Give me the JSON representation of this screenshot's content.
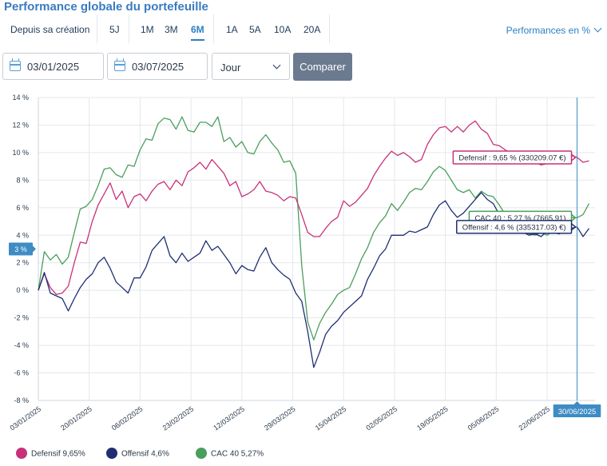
{
  "title": "Performance globale du portefeuille",
  "period": {
    "label": "Depuis sa création",
    "options": [
      "5J",
      "1M",
      "3M",
      "6M",
      "1A",
      "5A",
      "10A",
      "20A"
    ],
    "active": "6M"
  },
  "mode_select": "Performances en %",
  "filters": {
    "start_date": "03/01/2025",
    "end_date": "03/07/2025",
    "granularity": "Jour",
    "compare_label": "Comparer"
  },
  "colors": {
    "defensif": "#c8317a",
    "offensif": "#1f2e73",
    "cac40": "#4a9e5c",
    "accent": "#2d7fc4",
    "cursor": "#3d8cc4"
  },
  "chart_data": {
    "type": "line",
    "ylim": [
      -8,
      14
    ],
    "yticks": [
      -8,
      -6,
      -4,
      -2,
      0,
      2,
      4,
      6,
      8,
      10,
      12,
      14
    ],
    "ytick_labels": [
      "-8 %",
      "-6 %",
      "-4 %",
      "-2 %",
      "0 %",
      "2 %",
      "4 %",
      "6 %",
      "8 %",
      "10 %",
      "12 %",
      "14 %"
    ],
    "xlim": [
      0,
      186
    ],
    "xtick_labels": [
      "03/01/2025",
      "20/01/2025",
      "06/02/2025",
      "23/02/2025",
      "12/03/2025",
      "29/03/2025",
      "15/04/2025",
      "02/05/2025",
      "19/05/2025",
      "05/06/2025",
      "22/06/2025"
    ],
    "xtick_positions": [
      0,
      17,
      34,
      51,
      68,
      85,
      102,
      119,
      136,
      153,
      170
    ],
    "grid": true,
    "series": [
      {
        "name": "Defensif",
        "key": "defensif",
        "points": [
          [
            0,
            0
          ],
          [
            2,
            1.2
          ],
          [
            4,
            0.2
          ],
          [
            6,
            -0.3
          ],
          [
            8,
            -0.2
          ],
          [
            10,
            0.3
          ],
          [
            12,
            2
          ],
          [
            14,
            3.5
          ],
          [
            16,
            3.4
          ],
          [
            18,
            5
          ],
          [
            20,
            6.2
          ],
          [
            22,
            7
          ],
          [
            24,
            7.8
          ],
          [
            26,
            6.6
          ],
          [
            28,
            7.2
          ],
          [
            30,
            6
          ],
          [
            32,
            6.8
          ],
          [
            34,
            7
          ],
          [
            36,
            6.5
          ],
          [
            38,
            7.2
          ],
          [
            40,
            7.7
          ],
          [
            42,
            7.9
          ],
          [
            44,
            7.3
          ],
          [
            46,
            8
          ],
          [
            48,
            7.6
          ],
          [
            50,
            8.6
          ],
          [
            52,
            8.9
          ],
          [
            54,
            9.3
          ],
          [
            56,
            8.8
          ],
          [
            58,
            9.5
          ],
          [
            60,
            9
          ],
          [
            62,
            8.5
          ],
          [
            64,
            7.6
          ],
          [
            66,
            7.9
          ],
          [
            68,
            6.8
          ],
          [
            70,
            7
          ],
          [
            72,
            7.3
          ],
          [
            74,
            7.9
          ],
          [
            76,
            7.2
          ],
          [
            78,
            7.1
          ],
          [
            80,
            6.9
          ],
          [
            82,
            6.5
          ],
          [
            84,
            6.8
          ],
          [
            86,
            6.7
          ],
          [
            88,
            5.5
          ],
          [
            90,
            4.2
          ],
          [
            92,
            3.9
          ],
          [
            94,
            3.9
          ],
          [
            96,
            4.5
          ],
          [
            98,
            5
          ],
          [
            100,
            5.3
          ],
          [
            102,
            6.5
          ],
          [
            104,
            6.1
          ],
          [
            106,
            6.4
          ],
          [
            108,
            6.9
          ],
          [
            110,
            7.4
          ],
          [
            112,
            8.3
          ],
          [
            114,
            9
          ],
          [
            116,
            9.6
          ],
          [
            118,
            10.1
          ],
          [
            120,
            9.8
          ],
          [
            122,
            10
          ],
          [
            124,
            9.7
          ],
          [
            126,
            9.3
          ],
          [
            128,
            9.5
          ],
          [
            130,
            10.6
          ],
          [
            132,
            11.3
          ],
          [
            134,
            11.8
          ],
          [
            136,
            11.9
          ],
          [
            138,
            11.5
          ],
          [
            140,
            11.9
          ],
          [
            142,
            11.5
          ],
          [
            144,
            12
          ],
          [
            146,
            12.3
          ],
          [
            148,
            11.7
          ],
          [
            150,
            11.4
          ],
          [
            152,
            10.6
          ],
          [
            154,
            10.5
          ],
          [
            156,
            10.2
          ],
          [
            158,
            9.9
          ],
          [
            160,
            9.8
          ],
          [
            162,
            9.5
          ],
          [
            164,
            9.3
          ],
          [
            166,
            9.3
          ],
          [
            168,
            9.1
          ],
          [
            170,
            9.2
          ],
          [
            172,
            9.2
          ],
          [
            174,
            9.4
          ],
          [
            176,
            9.6
          ],
          [
            178,
            9.8
          ],
          [
            180,
            9.65
          ],
          [
            182,
            9.3
          ],
          [
            184,
            9.4
          ]
        ]
      },
      {
        "name": "Offensif",
        "key": "offensif",
        "points": [
          [
            0,
            0
          ],
          [
            2,
            1.3
          ],
          [
            4,
            -0.2
          ],
          [
            6,
            -0.4
          ],
          [
            8,
            -0.6
          ],
          [
            10,
            -1.5
          ],
          [
            12,
            -0.6
          ],
          [
            14,
            0.2
          ],
          [
            16,
            0.8
          ],
          [
            18,
            1.2
          ],
          [
            20,
            2
          ],
          [
            22,
            2.4
          ],
          [
            24,
            1.6
          ],
          [
            26,
            0.6
          ],
          [
            28,
            0.2
          ],
          [
            30,
            -0.2
          ],
          [
            32,
            0.9
          ],
          [
            34,
            0.9
          ],
          [
            36,
            1.7
          ],
          [
            38,
            2.9
          ],
          [
            40,
            3.4
          ],
          [
            42,
            3.9
          ],
          [
            44,
            2.5
          ],
          [
            46,
            2
          ],
          [
            48,
            2.7
          ],
          [
            50,
            2.1
          ],
          [
            52,
            2.4
          ],
          [
            54,
            2.7
          ],
          [
            56,
            3.6
          ],
          [
            58,
            2.9
          ],
          [
            60,
            3.2
          ],
          [
            62,
            2.6
          ],
          [
            64,
            2
          ],
          [
            66,
            1.2
          ],
          [
            68,
            1.8
          ],
          [
            70,
            1.5
          ],
          [
            72,
            1.4
          ],
          [
            74,
            2.4
          ],
          [
            76,
            3.1
          ],
          [
            78,
            2
          ],
          [
            80,
            1.5
          ],
          [
            82,
            1.1
          ],
          [
            84,
            0.8
          ],
          [
            86,
            -0.2
          ],
          [
            88,
            -0.8
          ],
          [
            90,
            -3
          ],
          [
            92,
            -5.6
          ],
          [
            94,
            -4.5
          ],
          [
            96,
            -3.2
          ],
          [
            98,
            -2.6
          ],
          [
            100,
            -2.2
          ],
          [
            102,
            -1.6
          ],
          [
            104,
            -1.2
          ],
          [
            106,
            -0.8
          ],
          [
            108,
            -0.4
          ],
          [
            110,
            0.8
          ],
          [
            112,
            1.6
          ],
          [
            114,
            2.5
          ],
          [
            116,
            3
          ],
          [
            118,
            4
          ],
          [
            120,
            4
          ],
          [
            122,
            4
          ],
          [
            124,
            4.3
          ],
          [
            126,
            4.2
          ],
          [
            128,
            4.4
          ],
          [
            130,
            4.6
          ],
          [
            132,
            5.5
          ],
          [
            134,
            6.2
          ],
          [
            136,
            6.5
          ],
          [
            138,
            5.8
          ],
          [
            140,
            5.3
          ],
          [
            142,
            5.6
          ],
          [
            144,
            6.1
          ],
          [
            146,
            6.6
          ],
          [
            148,
            7.1
          ],
          [
            150,
            6.6
          ],
          [
            152,
            6.3
          ],
          [
            154,
            5.5
          ],
          [
            156,
            5
          ],
          [
            158,
            4.6
          ],
          [
            160,
            4.4
          ],
          [
            162,
            4.2
          ],
          [
            164,
            4
          ],
          [
            166,
            4.1
          ],
          [
            168,
            3.9
          ],
          [
            170,
            4.3
          ],
          [
            172,
            4.2
          ],
          [
            174,
            4.1
          ],
          [
            176,
            4.3
          ],
          [
            178,
            4.5
          ],
          [
            180,
            4.6
          ],
          [
            182,
            3.9
          ],
          [
            184,
            4.5
          ]
        ]
      },
      {
        "name": "CAC 40",
        "key": "cac40",
        "points": [
          [
            0,
            0
          ],
          [
            2,
            2.8
          ],
          [
            4,
            2.2
          ],
          [
            6,
            2.6
          ],
          [
            8,
            1.9
          ],
          [
            10,
            2.4
          ],
          [
            12,
            4.2
          ],
          [
            14,
            5.9
          ],
          [
            16,
            6.1
          ],
          [
            18,
            6.6
          ],
          [
            20,
            7.6
          ],
          [
            22,
            8.8
          ],
          [
            24,
            8.9
          ],
          [
            26,
            8.4
          ],
          [
            28,
            8.2
          ],
          [
            30,
            9.1
          ],
          [
            32,
            9
          ],
          [
            34,
            10.2
          ],
          [
            36,
            11
          ],
          [
            38,
            10.9
          ],
          [
            40,
            12.1
          ],
          [
            42,
            12.5
          ],
          [
            44,
            12.4
          ],
          [
            46,
            11.7
          ],
          [
            48,
            12.6
          ],
          [
            50,
            11.6
          ],
          [
            52,
            11.5
          ],
          [
            54,
            12.2
          ],
          [
            56,
            12.2
          ],
          [
            58,
            11.9
          ],
          [
            60,
            12.6
          ],
          [
            62,
            10.8
          ],
          [
            64,
            11.1
          ],
          [
            66,
            10.4
          ],
          [
            68,
            10.8
          ],
          [
            70,
            10
          ],
          [
            72,
            9.9
          ],
          [
            74,
            10.8
          ],
          [
            76,
            11.3
          ],
          [
            78,
            10.7
          ],
          [
            80,
            10.2
          ],
          [
            82,
            9.3
          ],
          [
            84,
            9.4
          ],
          [
            86,
            8.5
          ],
          [
            88,
            1.8
          ],
          [
            90,
            -2.3
          ],
          [
            92,
            -3.6
          ],
          [
            94,
            -2.4
          ],
          [
            96,
            -1.6
          ],
          [
            98,
            -1
          ],
          [
            100,
            -0.3
          ],
          [
            102,
            0
          ],
          [
            104,
            0.2
          ],
          [
            106,
            1.2
          ],
          [
            108,
            2.3
          ],
          [
            110,
            3.1
          ],
          [
            112,
            4.2
          ],
          [
            114,
            4.9
          ],
          [
            116,
            5.4
          ],
          [
            118,
            6.3
          ],
          [
            120,
            5.8
          ],
          [
            122,
            6.4
          ],
          [
            124,
            7.1
          ],
          [
            126,
            7.4
          ],
          [
            128,
            7.3
          ],
          [
            130,
            7.9
          ],
          [
            132,
            8.6
          ],
          [
            134,
            9
          ],
          [
            136,
            8.7
          ],
          [
            138,
            8
          ],
          [
            140,
            7.3
          ],
          [
            142,
            7.1
          ],
          [
            144,
            7.3
          ],
          [
            146,
            6.7
          ],
          [
            148,
            7.2
          ],
          [
            150,
            6.9
          ],
          [
            152,
            6.8
          ],
          [
            154,
            6.2
          ],
          [
            156,
            5.5
          ],
          [
            158,
            5.1
          ],
          [
            160,
            4.7
          ],
          [
            162,
            4.3
          ],
          [
            164,
            4.1
          ],
          [
            166,
            4
          ],
          [
            168,
            4.2
          ],
          [
            170,
            4
          ],
          [
            172,
            4.3
          ],
          [
            174,
            4.7
          ],
          [
            176,
            5.2
          ],
          [
            178,
            5.27
          ],
          [
            180,
            5.27
          ],
          [
            182,
            5.5
          ],
          [
            184,
            6.3
          ]
        ]
      }
    ],
    "cursor": {
      "x": 180,
      "date_label": "30/06/2025",
      "tooltips": [
        {
          "key": "defensif",
          "text": "Defensif : 9,65 % (330209.07 €)"
        },
        {
          "key": "cac40",
          "text": "CAC 40 : 5,27 % (7665.91)"
        },
        {
          "key": "offensif",
          "text": "Offensif : 4,6 % (335317.03) €)"
        }
      ]
    },
    "y_marker": {
      "value": 3,
      "label": "3 %"
    },
    "legend": [
      {
        "key": "defensif",
        "label": "Defensif",
        "value": "9,65%"
      },
      {
        "key": "offensif",
        "label": "Offensif",
        "value": "4,6%"
      },
      {
        "key": "cac40",
        "label": "CAC 40",
        "value": "5,27%"
      }
    ]
  }
}
